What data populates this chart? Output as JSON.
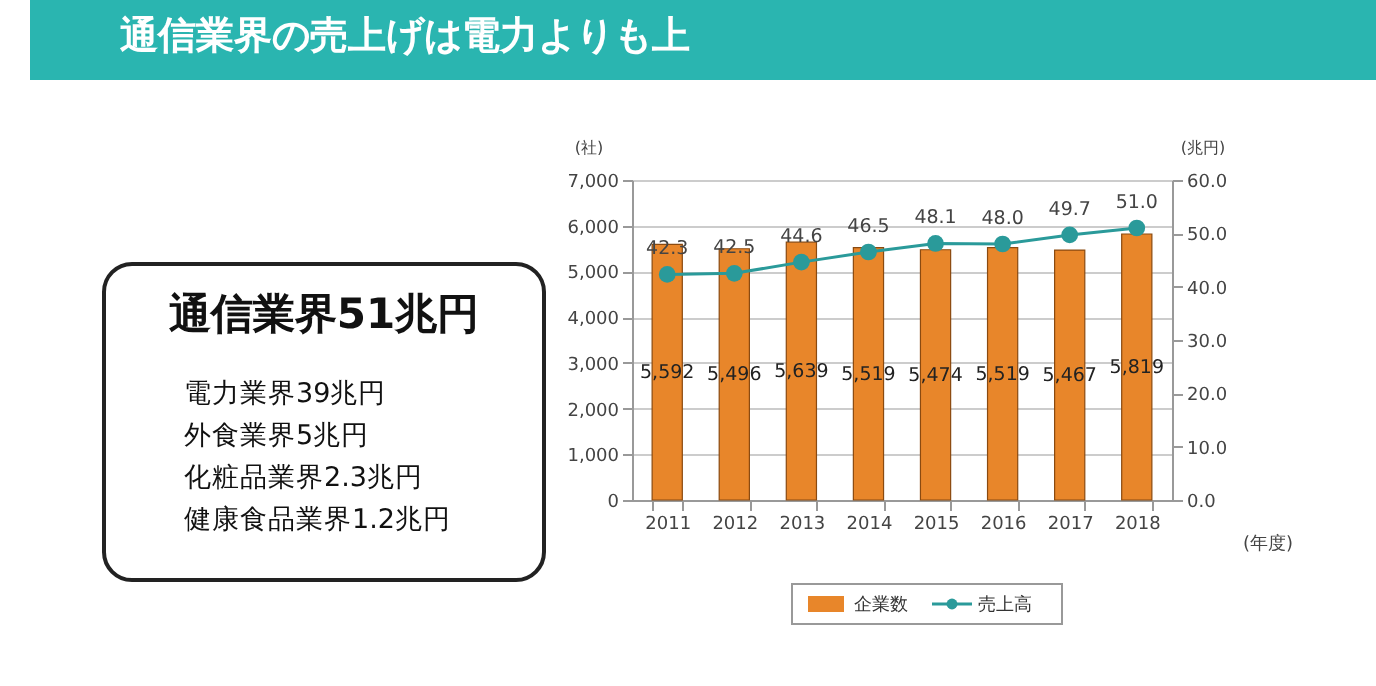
{
  "chart_data": {
    "type": "bar",
    "title": "通信業界の売上げは電力よりも上",
    "annotations": [
      "通信業界51兆円",
      "電力業界39兆円",
      "外食業界5兆円",
      "化粧品業界2.3兆円",
      "健康食品業界1.2兆円"
    ],
    "categories": [
      "2011",
      "2012",
      "2013",
      "2014",
      "2015",
      "2016",
      "2017",
      "2018"
    ],
    "xlabel": "(年度)",
    "ylabel": "(社)",
    "y2label": "(兆円)",
    "series": [
      {
        "name": "企業数",
        "color": "#e8862a",
        "values": [
          5592,
          5496,
          5639,
          5519,
          5474,
          5519,
          5467,
          5819
        ],
        "value_labels": [
          "5,592",
          "5,496",
          "5,639",
          "5,519",
          "5,474",
          "5,519",
          "5,467",
          "5,819"
        ]
      },
      {
        "name": "売上高",
        "type": "line",
        "axis": "y2",
        "color": "#2a9a9a",
        "marker": "circle",
        "values": [
          42.3,
          42.5,
          44.6,
          46.5,
          48.1,
          48.0,
          49.7,
          51.0
        ],
        "value_labels": [
          "42.3",
          "42.5",
          "44.6",
          "46.5",
          "48.1",
          "48.0",
          "49.7",
          "51.0"
        ]
      }
    ],
    "ylim": [
      0,
      7000
    ],
    "yticks": [
      0,
      {
        "value": 1000,
        "label": "1,000"
      },
      {
        "value": 2000,
        "label": "2,000"
      },
      {
        "value": 3000,
        "label": "3,000"
      },
      {
        "value": 4000,
        "label": "4,000"
      },
      {
        "value": 5000,
        "label": "5,000"
      },
      {
        "value": 6000,
        "label": "6,000"
      },
      {
        "value": 7000,
        "label": "7,000"
      }
    ],
    "y2lim": [
      0,
      60
    ],
    "y2ticks": [
      {
        "value": 0,
        "label": "0.0"
      },
      {
        "value": 10,
        "label": "10.0"
      },
      {
        "value": 20,
        "label": "20.0"
      },
      {
        "value": 30,
        "label": "30.0"
      },
      {
        "value": 40,
        "label": "40.0"
      },
      {
        "value": 50,
        "label": "50.0"
      },
      {
        "value": 60,
        "label": "60.0"
      }
    ],
    "grid": "y",
    "legend": "bottom"
  }
}
